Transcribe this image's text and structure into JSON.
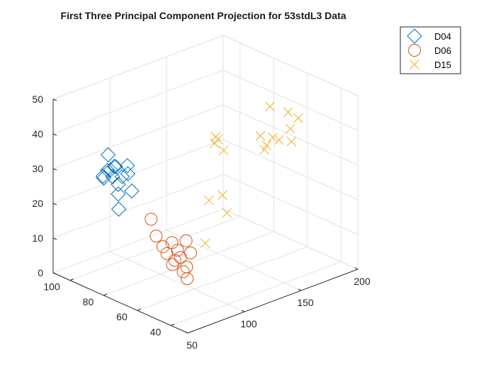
{
  "chart_data": {
    "type": "scatter",
    "title": "First Three  Principal Component Projection for 53stdL3 Data",
    "xlabel": "",
    "ylabel": "",
    "zlabel": "",
    "xlim": [
      50,
      200
    ],
    "ylim": [
      30,
      110
    ],
    "zlim": [
      0,
      50
    ],
    "x_ticks": [
      "50",
      "100",
      "150",
      "200"
    ],
    "y_ticks": [
      "40",
      "60",
      "80",
      "100"
    ],
    "z_ticks": [
      "0",
      "10",
      "20",
      "30",
      "40",
      "50"
    ],
    "grid": true,
    "view": "3d",
    "legend_position": "top-right",
    "series": [
      {
        "name": "D04",
        "marker": "diamond",
        "color": "#0072BD",
        "points": [
          [
            52,
            75,
            38
          ],
          [
            54,
            80,
            40
          ],
          [
            50,
            76,
            37
          ],
          [
            56,
            73,
            35
          ],
          [
            53,
            82,
            33
          ],
          [
            55,
            78,
            34
          ],
          [
            58,
            71,
            36
          ],
          [
            52,
            79,
            36
          ],
          [
            57,
            76,
            32
          ],
          [
            54,
            74,
            30
          ],
          [
            60,
            70,
            31
          ],
          [
            51,
            81,
            34
          ],
          [
            56,
            77,
            37
          ],
          [
            59,
            72,
            38
          ],
          [
            53,
            73,
            26
          ]
        ]
      },
      {
        "name": "D06",
        "marker": "circle",
        "color": "#D95319",
        "points": [
          [
            80,
            72,
            20
          ],
          [
            83,
            71,
            15
          ],
          [
            86,
            69,
            12
          ],
          [
            88,
            68,
            10
          ],
          [
            90,
            66,
            7
          ],
          [
            94,
            64,
            9
          ],
          [
            96,
            62,
            14
          ],
          [
            100,
            62,
            10
          ],
          [
            98,
            63,
            6
          ],
          [
            92,
            66,
            8
          ],
          [
            95,
            63,
            5
          ],
          [
            97,
            62,
            3
          ],
          [
            93,
            65,
            11
          ],
          [
            91,
            67,
            13
          ]
        ]
      },
      {
        "name": "D15",
        "marker": "x",
        "color": "#EDB120",
        "points": [
          [
            110,
            60,
            12
          ],
          [
            128,
            70,
            20
          ],
          [
            136,
            72,
            35
          ],
          [
            140,
            74,
            36
          ],
          [
            142,
            74,
            35
          ],
          [
            144,
            72,
            32
          ],
          [
            140,
            70,
            20
          ],
          [
            138,
            66,
            16
          ],
          [
            166,
            65,
            35
          ],
          [
            170,
            64,
            32
          ],
          [
            168,
            64,
            31
          ],
          [
            174,
            63,
            34
          ],
          [
            178,
            62,
            33
          ],
          [
            186,
            60,
            32
          ],
          [
            188,
            62,
            35
          ],
          [
            176,
            66,
            42
          ],
          [
            186,
            62,
            40
          ],
          [
            192,
            60,
            38
          ]
        ]
      }
    ]
  }
}
